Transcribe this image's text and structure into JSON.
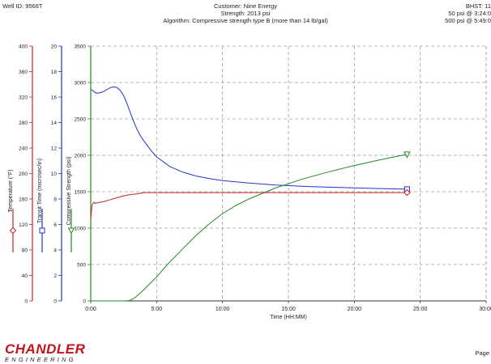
{
  "header": {
    "well_id": "Well ID: 9566T",
    "customer": "Customer: Nine Energy",
    "strength": "Strength: 2013 psi",
    "algorithm": "Algorithm: Compressive strength type B (more than 14 lb/gal)",
    "bhst": "BHST: 11",
    "psi50": "50 psi @ 3:24:0",
    "psi500": "500 psi @ 5:49:0"
  },
  "footer": {
    "brand": "CHANDLER",
    "brand_sub": "ENGINEERING",
    "page_label": "Page"
  },
  "colors": {
    "temperature": "#cc2222",
    "transit_time": "#2233cc",
    "compressive_strength": "#228822",
    "grid": "#a0a0a0"
  },
  "chart_data": {
    "type": "line",
    "xlabel": "Time (HH:MM)",
    "x_unit": "minutes",
    "x_ticks": [
      "0:00",
      "5:00",
      "10:00",
      "15:00",
      "20:00",
      "25:00",
      "30:00"
    ],
    "xlim": [
      0,
      1800
    ],
    "grid": true,
    "axes": [
      {
        "name": "Temperature (°F)",
        "key": "temperature",
        "range": [
          0,
          400
        ],
        "ticks": [
          0,
          40,
          80,
          120,
          160,
          200,
          240,
          280,
          320,
          360,
          400
        ],
        "marker": "diamond"
      },
      {
        "name": "Transit Time (microsec/in)",
        "key": "transit_time",
        "range": [
          0,
          20
        ],
        "ticks": [
          0,
          2,
          4,
          6,
          8,
          10,
          12,
          14,
          16,
          18,
          20
        ],
        "marker": "square"
      },
      {
        "name": "Compressive Strength (psi)",
        "key": "compressive_strength",
        "range": [
          0,
          3500
        ],
        "ticks": [
          0,
          500,
          1000,
          1500,
          2000,
          2500,
          3000,
          3500
        ],
        "marker": "triangle"
      }
    ],
    "series": [
      {
        "key": "transit_time",
        "x": [
          0,
          10,
          20,
          30,
          45,
          60,
          75,
          90,
          105,
          120,
          135,
          150,
          165,
          180,
          195,
          210,
          225,
          240,
          270,
          300,
          360,
          420,
          480,
          540,
          600,
          660,
          720,
          840,
          960,
          1080,
          1200,
          1320,
          1440
        ],
        "y": [
          16.6,
          16.5,
          16.35,
          16.3,
          16.35,
          16.45,
          16.6,
          16.75,
          16.8,
          16.75,
          16.5,
          16.1,
          15.5,
          14.8,
          14.1,
          13.5,
          13.0,
          12.6,
          11.9,
          11.3,
          10.55,
          10.1,
          9.8,
          9.6,
          9.45,
          9.35,
          9.25,
          9.1,
          9.0,
          8.93,
          8.87,
          8.82,
          8.77
        ]
      },
      {
        "key": "temperature",
        "x": [
          0,
          3,
          6,
          10,
          15,
          20,
          30,
          45,
          60,
          90,
          120,
          150,
          180,
          210,
          240,
          270,
          300,
          600,
          900,
          1200,
          1440
        ],
        "y": [
          128,
          140,
          150,
          153,
          155,
          153,
          154,
          155,
          156,
          159,
          162,
          165,
          167,
          168,
          170,
          170,
          170,
          170,
          170,
          170,
          170
        ]
      },
      {
        "key": "compressive_strength",
        "x": [
          0,
          120,
          150,
          170,
          180,
          204,
          240,
          300,
          349,
          420,
          480,
          540,
          600,
          660,
          720,
          840,
          960,
          1080,
          1200,
          1320,
          1440
        ],
        "y": [
          0,
          0,
          0,
          2,
          10,
          50,
          150,
          330,
          500,
          720,
          900,
          1060,
          1200,
          1310,
          1400,
          1550,
          1670,
          1770,
          1860,
          1940,
          2013
        ]
      }
    ]
  }
}
